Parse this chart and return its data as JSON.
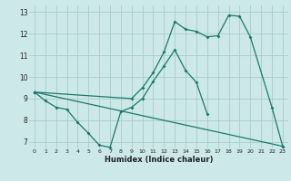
{
  "xlabel": "Humidex (Indice chaleur)",
  "bg_color": "#cce8e8",
  "grid_color": "#aacccc",
  "line_color": "#1a7a6a",
  "xlim": [
    -0.5,
    23.5
  ],
  "ylim": [
    6.7,
    13.3
  ],
  "yticks": [
    7,
    8,
    9,
    10,
    11,
    12,
    13
  ],
  "xticks": [
    0,
    1,
    2,
    3,
    4,
    5,
    6,
    7,
    8,
    9,
    10,
    11,
    12,
    13,
    14,
    15,
    16,
    17,
    18,
    19,
    20,
    21,
    22,
    23
  ],
  "line1_x": [
    0,
    1,
    2,
    3,
    4,
    5,
    6,
    7,
    8,
    9,
    10,
    11,
    12,
    13,
    14,
    15,
    16
  ],
  "line1_y": [
    9.3,
    8.9,
    8.6,
    8.5,
    7.9,
    7.4,
    6.85,
    6.75,
    8.4,
    8.6,
    9.0,
    9.8,
    10.5,
    11.25,
    10.3,
    9.75,
    8.3
  ],
  "line2_x": [
    0,
    9,
    10,
    11,
    12,
    13,
    14,
    15,
    16,
    17,
    18,
    19,
    20,
    22,
    23
  ],
  "line2_y": [
    9.3,
    9.0,
    9.5,
    10.2,
    11.15,
    12.55,
    12.2,
    12.1,
    11.85,
    11.9,
    12.85,
    12.8,
    11.85,
    8.6,
    6.8
  ],
  "line3_x": [
    0,
    23
  ],
  "line3_y": [
    9.3,
    6.8
  ]
}
